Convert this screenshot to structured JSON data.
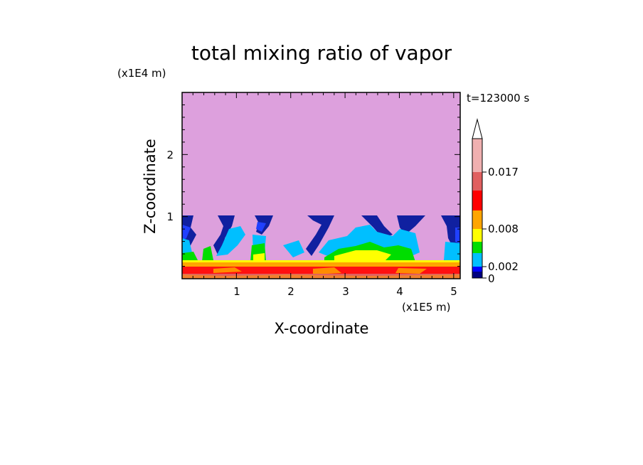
{
  "chart_data": {
    "type": "heatmap",
    "title": "total mixing ratio of vapor",
    "time_label": "t=123000 s",
    "xlabel": "X-coordinate",
    "ylabel": "Z-coordinate",
    "x_unit": "(x1E5 m)",
    "y_unit": "(x1E4 m)",
    "xlim": [
      0,
      5.12
    ],
    "ylim": [
      0,
      3.0
    ],
    "x_ticks": [
      "1",
      "2",
      "3",
      "4",
      "5"
    ],
    "y_ticks": [
      "1",
      "2"
    ],
    "background_value_color": "#dda0dd",
    "colorbar": {
      "labels": [
        "0",
        "0.002",
        "0.008",
        "0.017"
      ],
      "colors": [
        "#000080",
        "#0000ff",
        "#00bfff",
        "#00dd00",
        "#ffff00",
        "#ffa500",
        "#ff0000",
        "#e06060",
        "#f0b0b0",
        "#ffffff"
      ],
      "extend_max": true
    },
    "grid": false
  }
}
